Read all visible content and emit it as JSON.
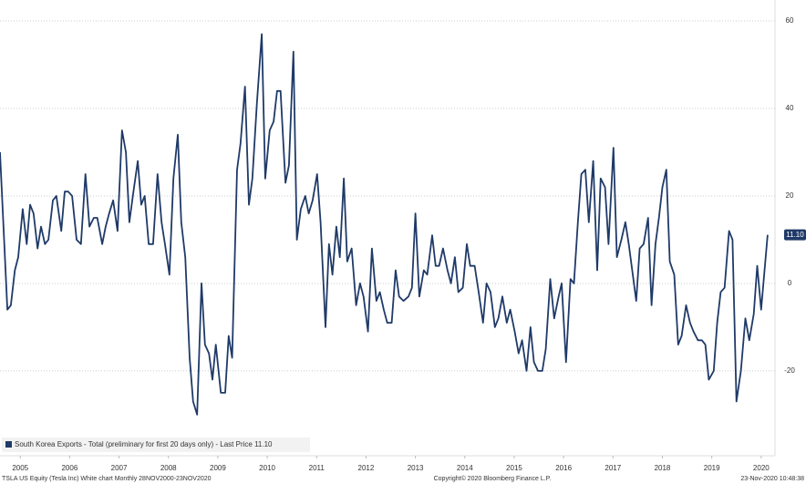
{
  "chart_data": {
    "type": "line",
    "x": [
      2005.09,
      2005.24,
      2005.31,
      2005.39,
      2005.46,
      2005.55,
      2005.63,
      2005.7,
      2005.77,
      2005.85,
      2005.92,
      2006.0,
      2006.07,
      2006.16,
      2006.23,
      2006.33,
      2006.4,
      2006.47,
      2006.55,
      2006.64,
      2006.73,
      2006.82,
      2006.9,
      2006.99,
      2007.06,
      2007.16,
      2007.23,
      2007.3,
      2007.38,
      2007.47,
      2007.56,
      2007.64,
      2007.71,
      2007.78,
      2007.88,
      2007.95,
      2008.02,
      2008.1,
      2008.19,
      2008.28,
      2008.36,
      2008.43,
      2008.52,
      2008.6,
      2008.69,
      2008.76,
      2008.84,
      2008.93,
      2009.0,
      2009.08,
      2009.17,
      2009.24,
      2009.32,
      2009.39,
      2009.46,
      2009.56,
      2009.65,
      2009.72,
      2009.79,
      2009.89,
      2009.96,
      2010.05,
      2010.13,
      2010.2,
      2010.29,
      2010.39,
      2010.46,
      2010.55,
      2010.63,
      2010.7,
      2010.77,
      2010.87,
      2010.94,
      2011.03,
      2011.1,
      2011.18,
      2011.27,
      2011.34,
      2011.42,
      2011.51,
      2011.58,
      2011.68,
      2011.75,
      2011.82,
      2011.9,
      2011.97,
      2012.05,
      2012.12,
      2012.21,
      2012.3,
      2012.38,
      2012.45,
      2012.54,
      2012.62,
      2012.71,
      2012.78,
      2012.86,
      2012.93,
      2013.02,
      2013.1,
      2013.17,
      2013.26,
      2013.36,
      2013.43,
      2013.5,
      2013.58,
      2013.67,
      2013.74,
      2013.84,
      2013.91,
      2013.98,
      2014.06,
      2014.15,
      2014.22,
      2014.3,
      2014.37,
      2014.46,
      2014.54,
      2014.61,
      2014.7,
      2014.78,
      2014.87,
      2014.94,
      2015.02,
      2015.11,
      2015.18,
      2015.26,
      2015.35,
      2015.42,
      2015.51,
      2015.59,
      2015.66,
      2015.75,
      2015.83,
      2015.9,
      2015.98,
      2016.07,
      2016.14,
      2016.23,
      2016.31,
      2016.4,
      2016.46,
      2016.55,
      2016.64,
      2016.71,
      2016.79,
      2016.86,
      2016.94,
      2017.01,
      2017.1,
      2017.18,
      2017.25,
      2017.34,
      2017.41,
      2017.51,
      2017.58,
      2017.67,
      2017.75,
      2017.82,
      2017.89,
      2017.97,
      2018.04,
      2018.12,
      2018.21,
      2018.28,
      2018.36,
      2018.43,
      2018.5,
      2018.58,
      2018.65,
      2018.74,
      2018.82,
      2018.89,
      2018.98,
      2019.06,
      2019.13,
      2019.22,
      2019.3,
      2019.37,
      2019.44,
      2019.54,
      2019.61,
      2019.68,
      2019.76,
      2019.85,
      2019.92,
      2020.0,
      2020.09,
      2020.18,
      2020.26,
      2020.35,
      2020.42,
      2020.5,
      2020.63
    ],
    "series": [
      {
        "name": "South Korea Exports - Total (preliminary for first 20 days only) - Last Price 11.10",
        "color": "#1f3a68",
        "values": [
          30,
          -6,
          -5,
          3,
          6,
          17,
          9,
          18,
          16,
          8,
          13,
          9,
          10,
          19,
          20,
          12,
          21,
          21,
          20,
          10,
          9,
          25,
          13,
          15,
          15,
          9,
          13,
          16,
          19,
          12,
          35,
          30,
          14,
          20,
          28,
          18,
          20,
          9,
          9,
          25,
          14,
          9,
          2,
          24,
          34,
          14,
          6,
          -17,
          -27,
          -30,
          0,
          -14,
          -16,
          -22,
          -14,
          -25,
          -25,
          -12,
          -17,
          26,
          32,
          45,
          18,
          24,
          41,
          57,
          24,
          35,
          37,
          44,
          44,
          23,
          27,
          53,
          10,
          17,
          20,
          16,
          19,
          25,
          14,
          -10,
          9,
          2,
          13,
          6,
          24,
          5,
          8,
          -5,
          0,
          -3,
          -11,
          8,
          -4,
          -2,
          -6,
          -9,
          -9,
          3,
          -3,
          -4,
          -3,
          -1,
          16,
          -3,
          3,
          2,
          11,
          4,
          4,
          8,
          3,
          0,
          6,
          -2,
          -1,
          9,
          4,
          4,
          -2,
          -9,
          0,
          -2,
          -10,
          -8,
          -3,
          -9,
          -6,
          -11,
          -16,
          -13,
          -20,
          -10,
          -18,
          -20,
          -20,
          -15,
          1,
          -8,
          -3,
          0,
          -18,
          1,
          0,
          14,
          25,
          26,
          14,
          28,
          3,
          24,
          22,
          9,
          31,
          6,
          10,
          14,
          9,
          3,
          -4,
          8,
          9,
          15,
          -5,
          9,
          15,
          22,
          26,
          5,
          2,
          -14,
          -12,
          -5,
          -9,
          -11,
          -13,
          -13,
          -14,
          -22,
          -20,
          -9,
          -2,
          -1,
          12,
          10,
          -27,
          -20,
          -8,
          -13,
          -7,
          4,
          -6,
          11.1
        ]
      }
    ],
    "last_price": {
      "value": 11.1,
      "label": "11.10"
    },
    "xlim": [
      2005.09,
      2020.78
    ],
    "xticks": [
      {
        "value": 2005.5,
        "label": "2005"
      },
      {
        "value": 2006.5,
        "label": "2006"
      },
      {
        "value": 2007.5,
        "label": "2007"
      },
      {
        "value": 2008.5,
        "label": "2008"
      },
      {
        "value": 2009.5,
        "label": "2009"
      },
      {
        "value": 2010.5,
        "label": "2010"
      },
      {
        "value": 2011.5,
        "label": "2011"
      },
      {
        "value": 2012.5,
        "label": "2012"
      },
      {
        "value": 2013.5,
        "label": "2013"
      },
      {
        "value": 2014.5,
        "label": "2014"
      },
      {
        "value": 2015.5,
        "label": "2015"
      },
      {
        "value": 2016.5,
        "label": "2016"
      },
      {
        "value": 2017.5,
        "label": "2017"
      },
      {
        "value": 2018.5,
        "label": "2018"
      },
      {
        "value": 2019.5,
        "label": "2019"
      },
      {
        "value": 2020.5,
        "label": "2020"
      }
    ],
    "ylim": [
      -39.4,
      64.8
    ],
    "yticks": [
      -20,
      0,
      20,
      40,
      60
    ],
    "grid": true,
    "footer": {
      "left": "TSLA US Equity (Tesla Inc) White chart  Monthly 28NOV2000-23NOV2020",
      "center": "Copyright© 2020 Bloomberg Finance L.P.",
      "right": "23-Nov-2020 10:48:38"
    }
  }
}
